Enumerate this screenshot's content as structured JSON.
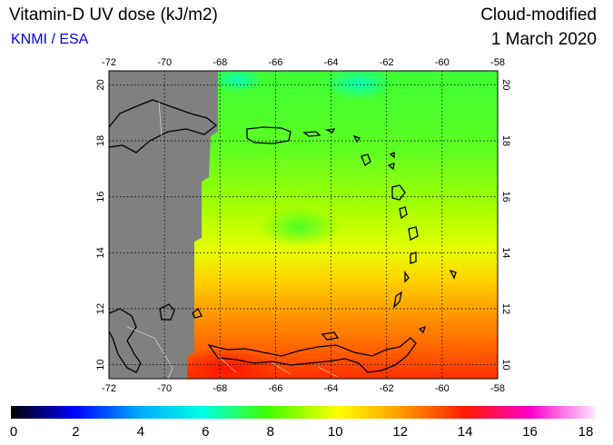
{
  "header": {
    "title": "Vitamin-D UV dose (kJ/m2)",
    "source": "KNMI / ESA",
    "product": "Cloud-modified",
    "date": "1 March 2020"
  },
  "map": {
    "lon_range": [
      -72,
      -58
    ],
    "lat_range": [
      9.5,
      20.5
    ],
    "lon_ticks": [
      "-72",
      "-70",
      "-68",
      "-66",
      "-64",
      "-62",
      "-60",
      "-58"
    ],
    "lat_ticks": [
      "10",
      "12",
      "14",
      "16",
      "18",
      "20"
    ],
    "no_data_color": "#808080",
    "grid": "dotted"
  },
  "colorbar": {
    "ticks": [
      "0",
      "2",
      "4",
      "6",
      "8",
      "10",
      "12",
      "14",
      "16",
      "18"
    ],
    "colors": [
      "#000000",
      "#0000ff",
      "#00a0ff",
      "#00ffe0",
      "#40ff00",
      "#c0ff00",
      "#ffff00",
      "#ff9900",
      "#ff2000",
      "#ff00ff",
      "#ffffff"
    ]
  }
}
